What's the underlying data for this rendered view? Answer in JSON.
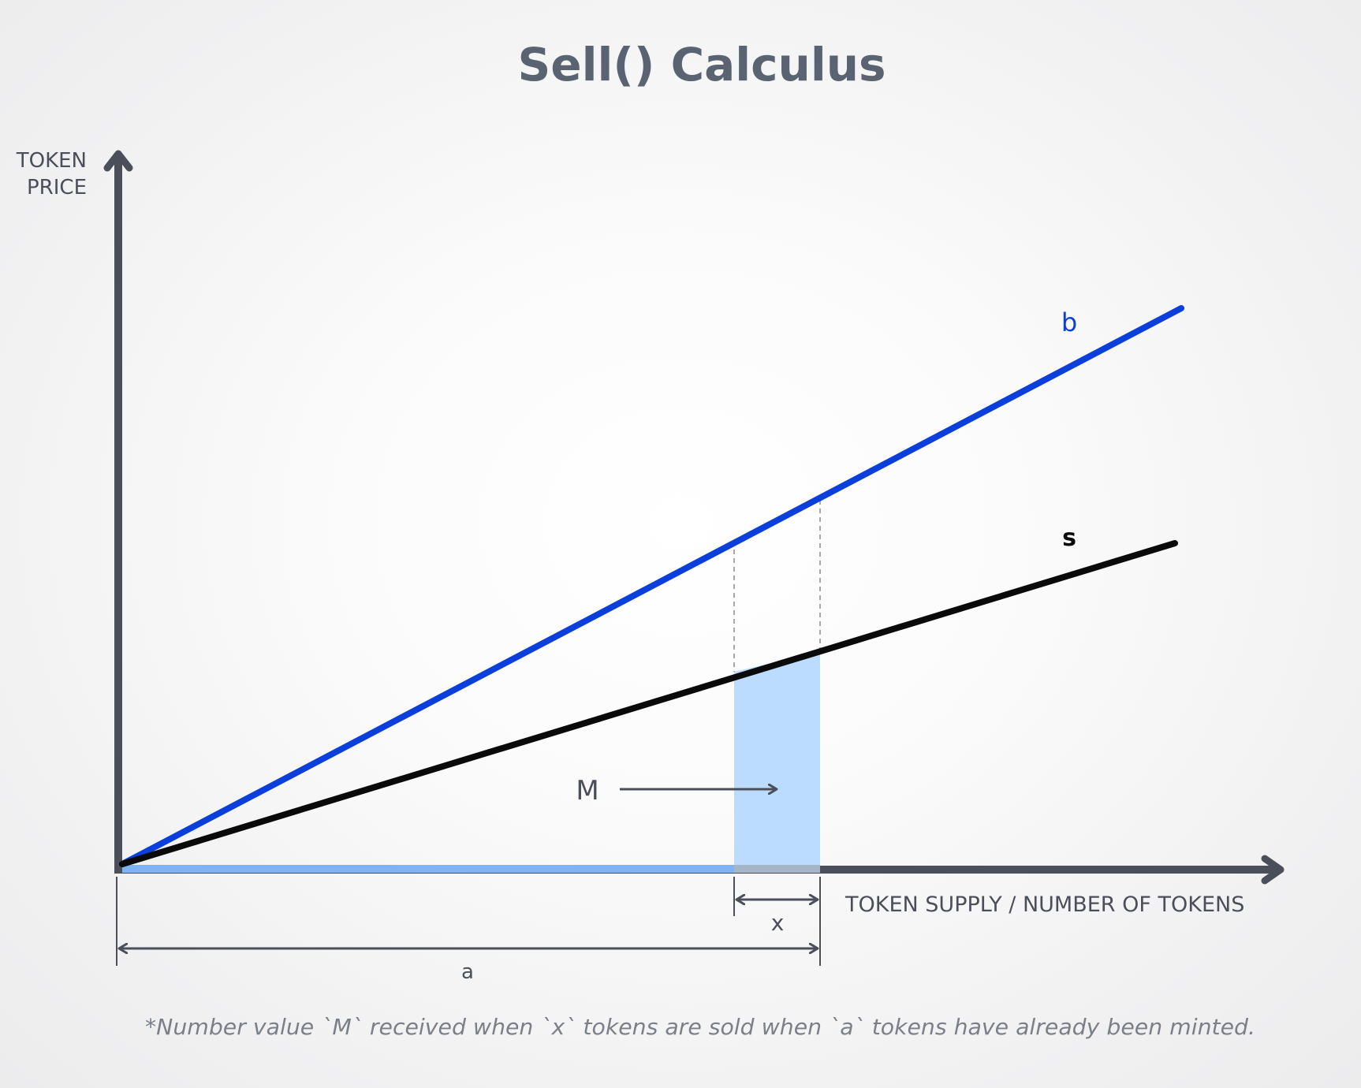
{
  "title": "Sell() Calculus",
  "y_axis_label": [
    "TOKEN",
    "PRICE"
  ],
  "x_axis_label": "TOKEN SUPPLY / NUMBER OF TOKENS",
  "curves": {
    "buy_label": "b",
    "sell_label": "s"
  },
  "area_label": "M",
  "dimensions": {
    "x_label": "x",
    "a_label": "a"
  },
  "footnote": "*Number value `M` received when `x` tokens are sold when `a` tokens have already been minted.",
  "colors": {
    "axis": "#4a4f5a",
    "buy_curve": "#0a3fdc",
    "sell_curve": "#0a0a0a",
    "area_fill": "#bcdcff",
    "supply_bar": "#7eb3f6",
    "dashed_guides": "#a8a8a8",
    "title": "#5a6372",
    "footnote": "#7a7f88"
  }
}
